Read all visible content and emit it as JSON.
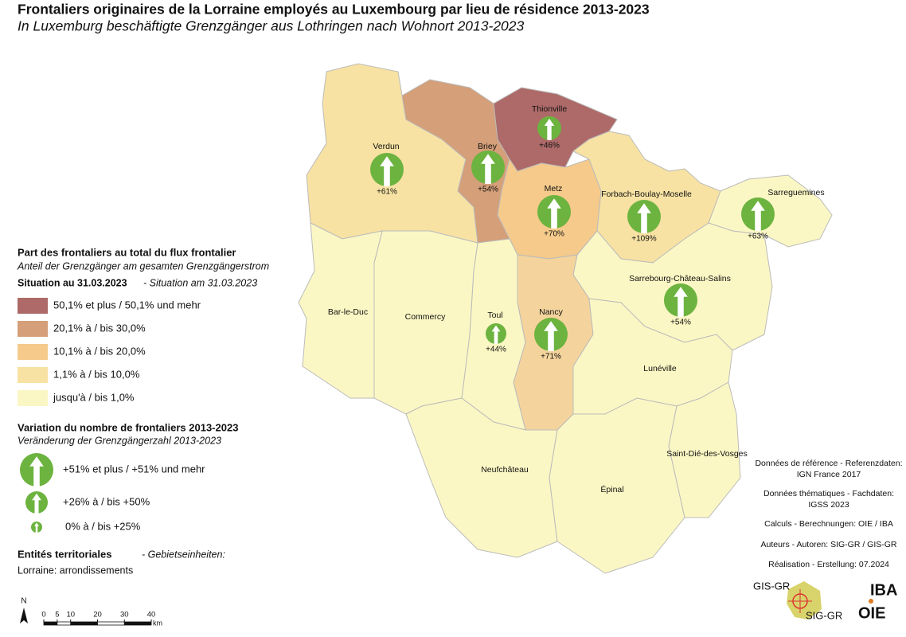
{
  "header": {
    "title": "Frontaliers originaires de la Lorraine employés au Luxembourg par lieu de résidence 2013-2023",
    "subtitle": "In Luxemburg beschäftigte Grenzgänger aus Lothringen nach Wohnort 2013-2023"
  },
  "legend_share": {
    "title": "Part des frontaliers au total du flux frontalier",
    "subtitle": "Anteil der Grenzgänger am gesamten Grenzgängerstrom",
    "situation_fr": "Situation au 31.03.2023",
    "situation_de": "- Situation am 31.03.2023",
    "classes": [
      {
        "label": "50,1% et plus / 50,1% und mehr",
        "color": "#ad6a68"
      },
      {
        "label": "20,1% à / bis 30,0%",
        "color": "#d49f79"
      },
      {
        "label": "10,1% à / bis 20,0%",
        "color": "#f5ca8b"
      },
      {
        "label": "1,1% à / bis 10,0%",
        "color": "#f7e2a3"
      },
      {
        "label": "jusqu'à / bis 1,0%",
        "color": "#fbf7c4"
      }
    ]
  },
  "legend_change": {
    "title": "Variation du nombre de frontaliers 2013-2023",
    "subtitle": "Veränderung der Grenzgängerzahl 2013-2023",
    "color": "#6cb33f",
    "classes": [
      {
        "label": "+51% et plus / +51% und mehr"
      },
      {
        "label": "+26% à / bis +50%"
      },
      {
        "label": "0% à / bis +25%"
      }
    ]
  },
  "entities": {
    "title_fr": "Entités territoriales",
    "title_de": "- Gebietseinheiten:",
    "value": "Lorraine: arrondissements"
  },
  "scale": {
    "north": "N",
    "ticks": [
      0,
      5,
      10,
      20,
      30,
      40
    ],
    "unit": "km"
  },
  "regions": [
    {
      "name": "Thionville",
      "change": "+46%"
    },
    {
      "name": "Verdun",
      "change": "+61%"
    },
    {
      "name": "Briey",
      "change": "+54%"
    },
    {
      "name": "Metz",
      "change": "+70%"
    },
    {
      "name": "Forbach-Boulay-Moselle",
      "change": "+109%"
    },
    {
      "name": "Sarreguemines",
      "change": "+63%"
    },
    {
      "name": "Sarrebourg-Château-Salins",
      "change": "+54%"
    },
    {
      "name": "Toul",
      "change": "+44%"
    },
    {
      "name": "Nancy",
      "change": "+71%"
    },
    {
      "name": "Bar-le-Duc"
    },
    {
      "name": "Commercy"
    },
    {
      "name": "Lunéville"
    },
    {
      "name": "Neufchâteau"
    },
    {
      "name": "Épinal"
    },
    {
      "name": "Saint-Dié-des-Vosges"
    }
  ],
  "credits": [
    "Données de référence - Referenzdaten:",
    "IGN France 2017",
    "Données thématiques - Fachdaten:",
    "IGSS 2023",
    "Calculs - Berechnungen: OIE / IBA",
    "Auteurs - Autoren: SIG-GR / GIS-GR",
    "Réalisation - Erstellung: 07.2024"
  ],
  "logos": {
    "gis": "GIS-GR",
    "sig": "SIG-GR",
    "iba": "IBA",
    "oie": "OIE"
  }
}
